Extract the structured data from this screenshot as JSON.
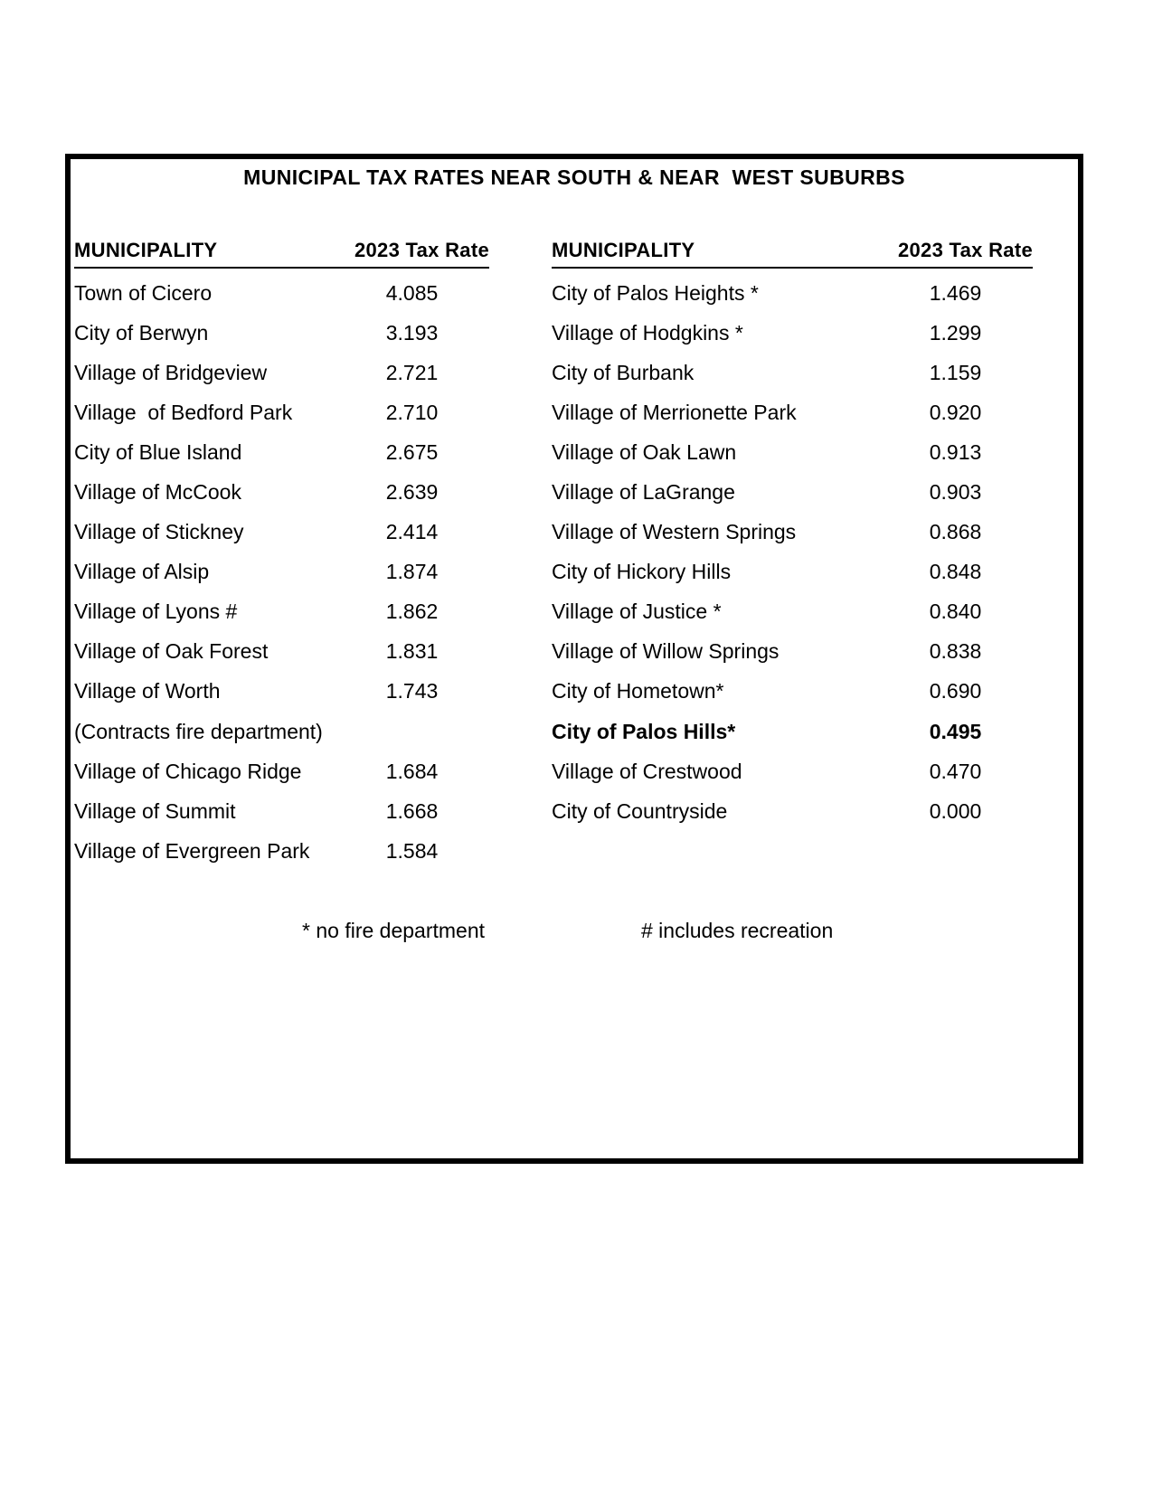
{
  "title": "MUNICIPAL TAX RATES NEAR SOUTH & NEAR  WEST SUBURBS",
  "tables": {
    "header_municipality": "MUNICIPALITY",
    "header_rate": "2023 Tax Rate",
    "left_rows": [
      {
        "name": "Town of Cicero",
        "rate": "4.085"
      },
      {
        "name": "City of Berwyn",
        "rate": "3.193"
      },
      {
        "name": "Village of Bridgeview",
        "rate": "2.721"
      },
      {
        "name": "Village  of Bedford Park",
        "rate": "2.710"
      },
      {
        "name": "City of Blue Island",
        "rate": "2.675"
      },
      {
        "name": "Village of McCook",
        "rate": "2.639"
      },
      {
        "name": "Village of Stickney",
        "rate": "2.414"
      },
      {
        "name": "Village of Alsip",
        "rate": "1.874"
      },
      {
        "name": "Village of Lyons #",
        "rate": "1.862"
      },
      {
        "name": "Village of Oak Forest",
        "rate": "1.831"
      },
      {
        "name": "Village of Worth",
        "rate": "1.743"
      },
      {
        "name": "(Contracts fire department)",
        "rate": ""
      },
      {
        "name": "Village of Chicago Ridge",
        "rate": "1.684"
      },
      {
        "name": "Village of Summit",
        "rate": "1.668"
      },
      {
        "name": "Village of Evergreen Park",
        "rate": "1.584"
      }
    ],
    "right_rows": [
      {
        "name": "City of Palos Heights *",
        "rate": "1.469"
      },
      {
        "name": "Village of Hodgkins *",
        "rate": "1.299"
      },
      {
        "name": "City of Burbank",
        "rate": "1.159"
      },
      {
        "name": "Village of Merrionette Park",
        "rate": "0.920"
      },
      {
        "name": "Village of Oak Lawn",
        "rate": "0.913"
      },
      {
        "name": "Village of LaGrange",
        "rate": "0.903"
      },
      {
        "name": "Village of Western Springs",
        "rate": "0.868"
      },
      {
        "name": "City of Hickory Hills",
        "rate": "0.848"
      },
      {
        "name": "Village of Justice *",
        "rate": "0.840"
      },
      {
        "name": "Village of Willow Springs",
        "rate": "0.838"
      },
      {
        "name": "City of Hometown*",
        "rate": "0.690"
      },
      {
        "name": "City of Palos Hills*",
        "rate": "0.495",
        "bold": true
      },
      {
        "name": "Village of Crestwood",
        "rate": "0.470"
      },
      {
        "name": "City of Countryside",
        "rate": "0.000"
      }
    ]
  },
  "footnotes": {
    "fire": "* no fire department",
    "recreation": "# includes recreation"
  },
  "colors": {
    "text": "#000000",
    "border": "#000000",
    "background": "#ffffff"
  }
}
